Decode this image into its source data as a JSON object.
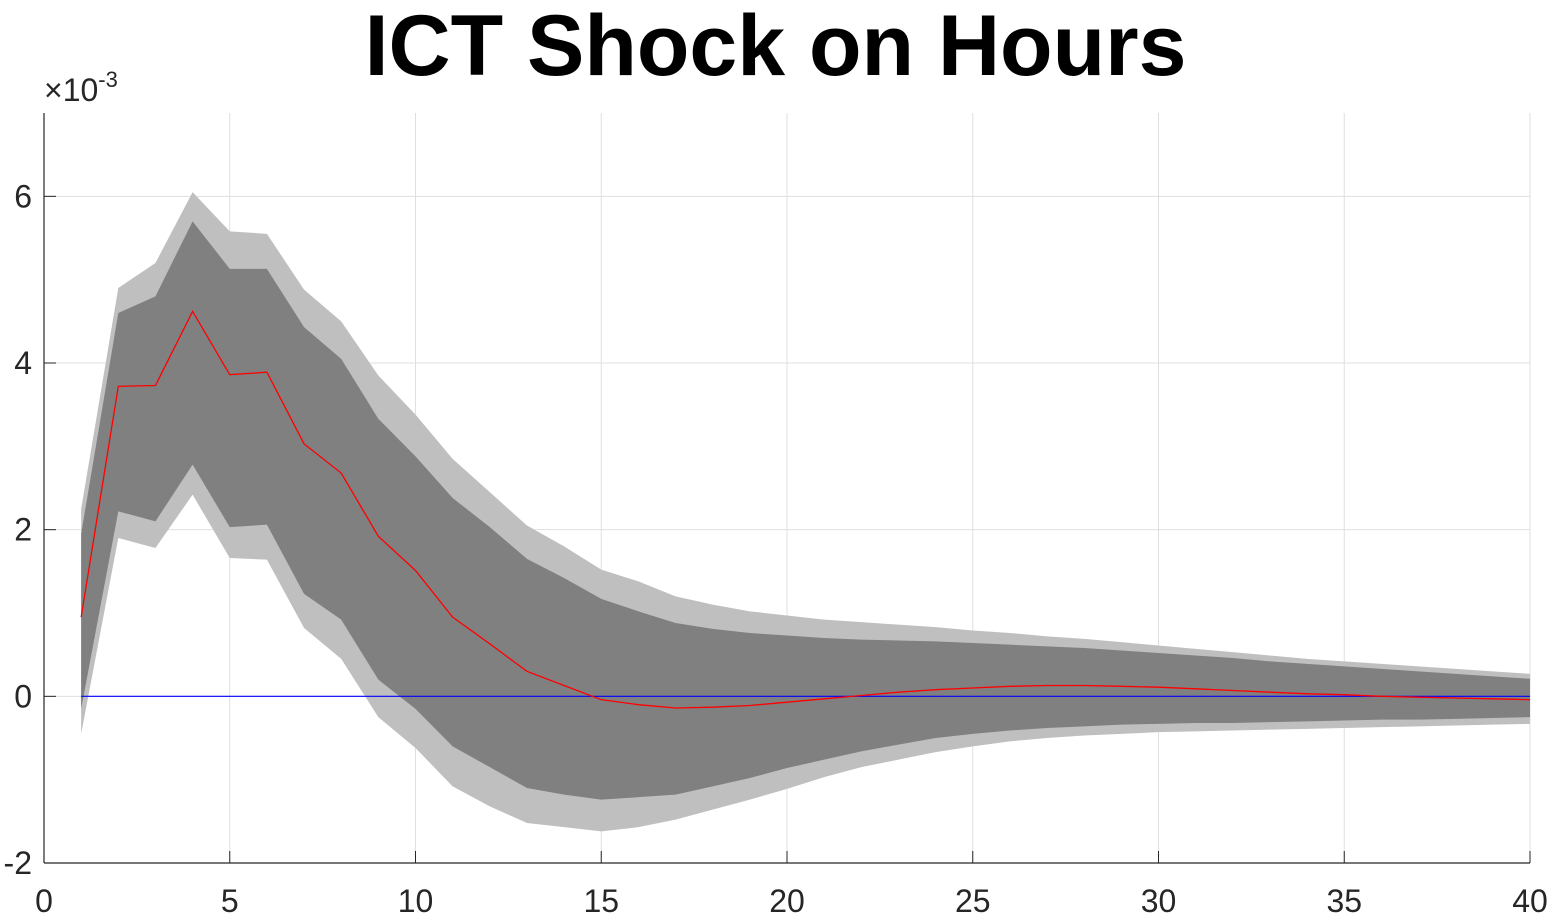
{
  "chart_data": {
    "type": "area",
    "title": "ICT Shock on Hours",
    "xlabel": "",
    "ylabel": "",
    "y_exponent_label": "×10",
    "y_exponent_power": "-3",
    "xlim": [
      0,
      40
    ],
    "ylim": [
      -2,
      7
    ],
    "xticks": [
      0,
      5,
      10,
      15,
      20,
      25,
      30,
      35,
      40
    ],
    "yticks": [
      -2,
      0,
      2,
      4,
      6
    ],
    "grid": true,
    "x": [
      1,
      2,
      3,
      4,
      5,
      6,
      7,
      8,
      9,
      10,
      11,
      12,
      13,
      14,
      15,
      16,
      17,
      18,
      19,
      20,
      21,
      22,
      23,
      24,
      25,
      26,
      27,
      28,
      29,
      30,
      31,
      32,
      33,
      34,
      35,
      36,
      37,
      38,
      39,
      40
    ],
    "series": [
      {
        "role": "outer-band",
        "color": "#bfbfbf",
        "upper": [
          2.25,
          4.9,
          5.2,
          6.05,
          5.58,
          5.55,
          4.88,
          4.5,
          3.85,
          3.38,
          2.85,
          2.45,
          2.05,
          1.8,
          1.52,
          1.38,
          1.2,
          1.1,
          1.02,
          0.97,
          0.92,
          0.89,
          0.86,
          0.83,
          0.79,
          0.76,
          0.72,
          0.69,
          0.65,
          0.61,
          0.57,
          0.53,
          0.49,
          0.45,
          0.42,
          0.39,
          0.36,
          0.33,
          0.3,
          0.27
        ],
        "lower": [
          -0.45,
          1.9,
          1.78,
          2.42,
          1.66,
          1.64,
          0.82,
          0.45,
          -0.25,
          -0.62,
          -1.08,
          -1.32,
          -1.52,
          -1.57,
          -1.62,
          -1.57,
          -1.48,
          -1.36,
          -1.24,
          -1.11,
          -0.97,
          -0.85,
          -0.76,
          -0.67,
          -0.6,
          -0.54,
          -0.5,
          -0.47,
          -0.45,
          -0.43,
          -0.42,
          -0.41,
          -0.4,
          -0.39,
          -0.38,
          -0.37,
          -0.36,
          -0.35,
          -0.34,
          -0.33
        ]
      },
      {
        "role": "inner-band",
        "color": "#808080",
        "upper": [
          1.95,
          4.6,
          4.8,
          5.7,
          5.13,
          5.13,
          4.43,
          4.05,
          3.33,
          2.88,
          2.38,
          2.03,
          1.65,
          1.42,
          1.17,
          1.02,
          0.88,
          0.81,
          0.76,
          0.73,
          0.7,
          0.68,
          0.67,
          0.66,
          0.64,
          0.62,
          0.6,
          0.58,
          0.55,
          0.52,
          0.49,
          0.46,
          0.42,
          0.39,
          0.36,
          0.33,
          0.3,
          0.27,
          0.24,
          0.21
        ],
        "lower": [
          -0.15,
          2.22,
          2.1,
          2.78,
          2.03,
          2.06,
          1.23,
          0.92,
          0.2,
          -0.15,
          -0.6,
          -0.85,
          -1.1,
          -1.18,
          -1.24,
          -1.21,
          -1.18,
          -1.08,
          -0.98,
          -0.86,
          -0.76,
          -0.66,
          -0.58,
          -0.5,
          -0.45,
          -0.41,
          -0.38,
          -0.36,
          -0.34,
          -0.33,
          -0.32,
          -0.32,
          -0.31,
          -0.3,
          -0.29,
          -0.28,
          -0.28,
          -0.27,
          -0.26,
          -0.25
        ]
      },
      {
        "role": "median",
        "color": "#ff0000",
        "values": [
          0.95,
          3.72,
          3.73,
          4.62,
          3.86,
          3.89,
          3.03,
          2.68,
          1.92,
          1.51,
          0.95,
          0.63,
          0.3,
          0.13,
          -0.04,
          -0.1,
          -0.14,
          -0.13,
          -0.11,
          -0.07,
          -0.03,
          0.01,
          0.05,
          0.08,
          0.1,
          0.12,
          0.13,
          0.13,
          0.12,
          0.11,
          0.09,
          0.07,
          0.05,
          0.03,
          0.02,
          0.0,
          -0.01,
          -0.02,
          -0.03,
          -0.04
        ]
      },
      {
        "role": "zero-line",
        "color": "#0000ff",
        "values": [
          0,
          0,
          0,
          0,
          0,
          0,
          0,
          0,
          0,
          0,
          0,
          0,
          0,
          0,
          0,
          0,
          0,
          0,
          0,
          0,
          0,
          0,
          0,
          0,
          0,
          0,
          0,
          0,
          0,
          0,
          0,
          0,
          0,
          0,
          0,
          0,
          0,
          0,
          0,
          0
        ]
      }
    ]
  }
}
